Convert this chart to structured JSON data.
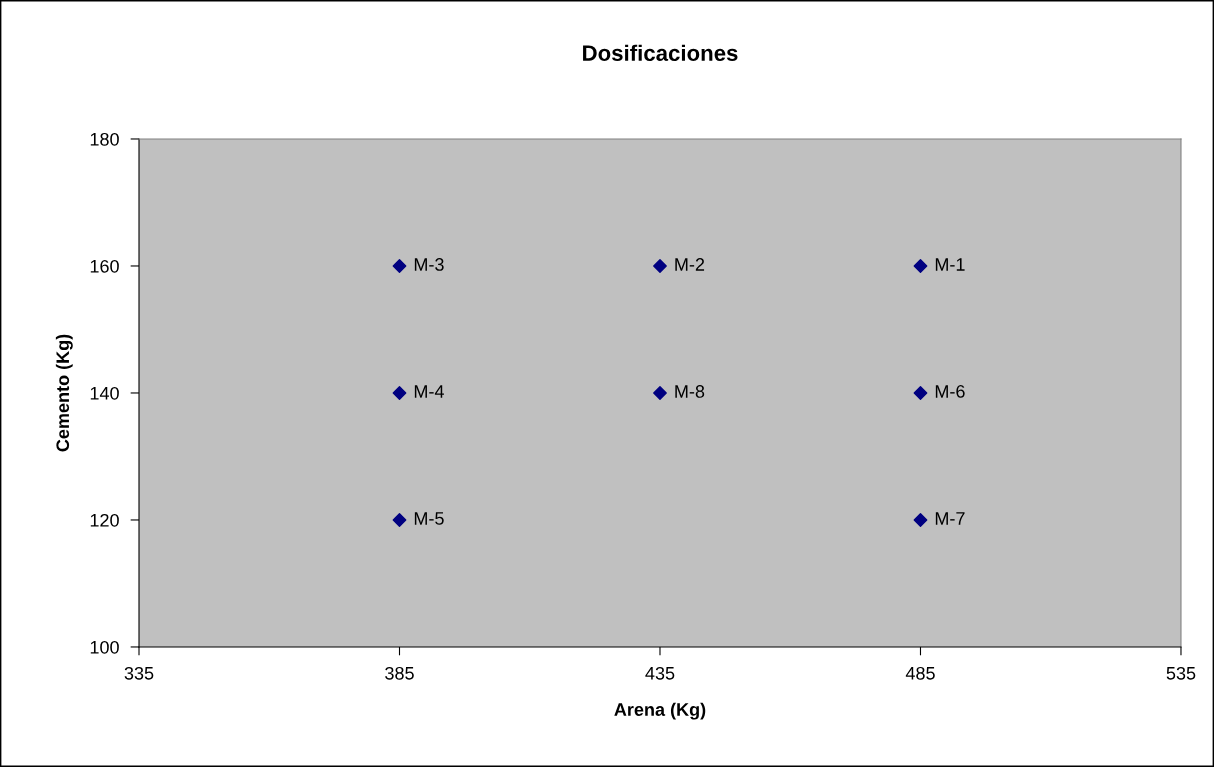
{
  "chart_data": {
    "type": "scatter",
    "title": "Dosificaciones",
    "xlabel": "Arena (Kg)",
    "ylabel": "Cemento (Kg)",
    "series": [
      {
        "color": "#000080",
        "x": [
          485,
          435,
          385,
          385,
          385,
          485,
          485,
          435
        ],
        "values": [
          160,
          160,
          160,
          140,
          120,
          140,
          120,
          140
        ]
      }
    ],
    "marker": "diamond",
    "grid": false,
    "legend": false,
    "xlim": [
      335,
      535
    ],
    "xticks": [
      335,
      385,
      435,
      485,
      535
    ],
    "ylim": [
      100,
      180
    ],
    "yticks": [
      100,
      120,
      140,
      160,
      180
    ],
    "annotations": [
      {
        "text": "M-1",
        "x": 485,
        "y": 160
      },
      {
        "text": "M-2",
        "x": 435,
        "y": 160
      },
      {
        "text": "M-3",
        "x": 385,
        "y": 160
      },
      {
        "text": "M-4",
        "x": 385,
        "y": 140
      },
      {
        "text": "M-5",
        "x": 385,
        "y": 120
      },
      {
        "text": "M-6",
        "x": 485,
        "y": 140
      },
      {
        "text": "M-7",
        "x": 485,
        "y": 120
      },
      {
        "text": "M-8",
        "x": 435,
        "y": 140
      }
    ]
  }
}
